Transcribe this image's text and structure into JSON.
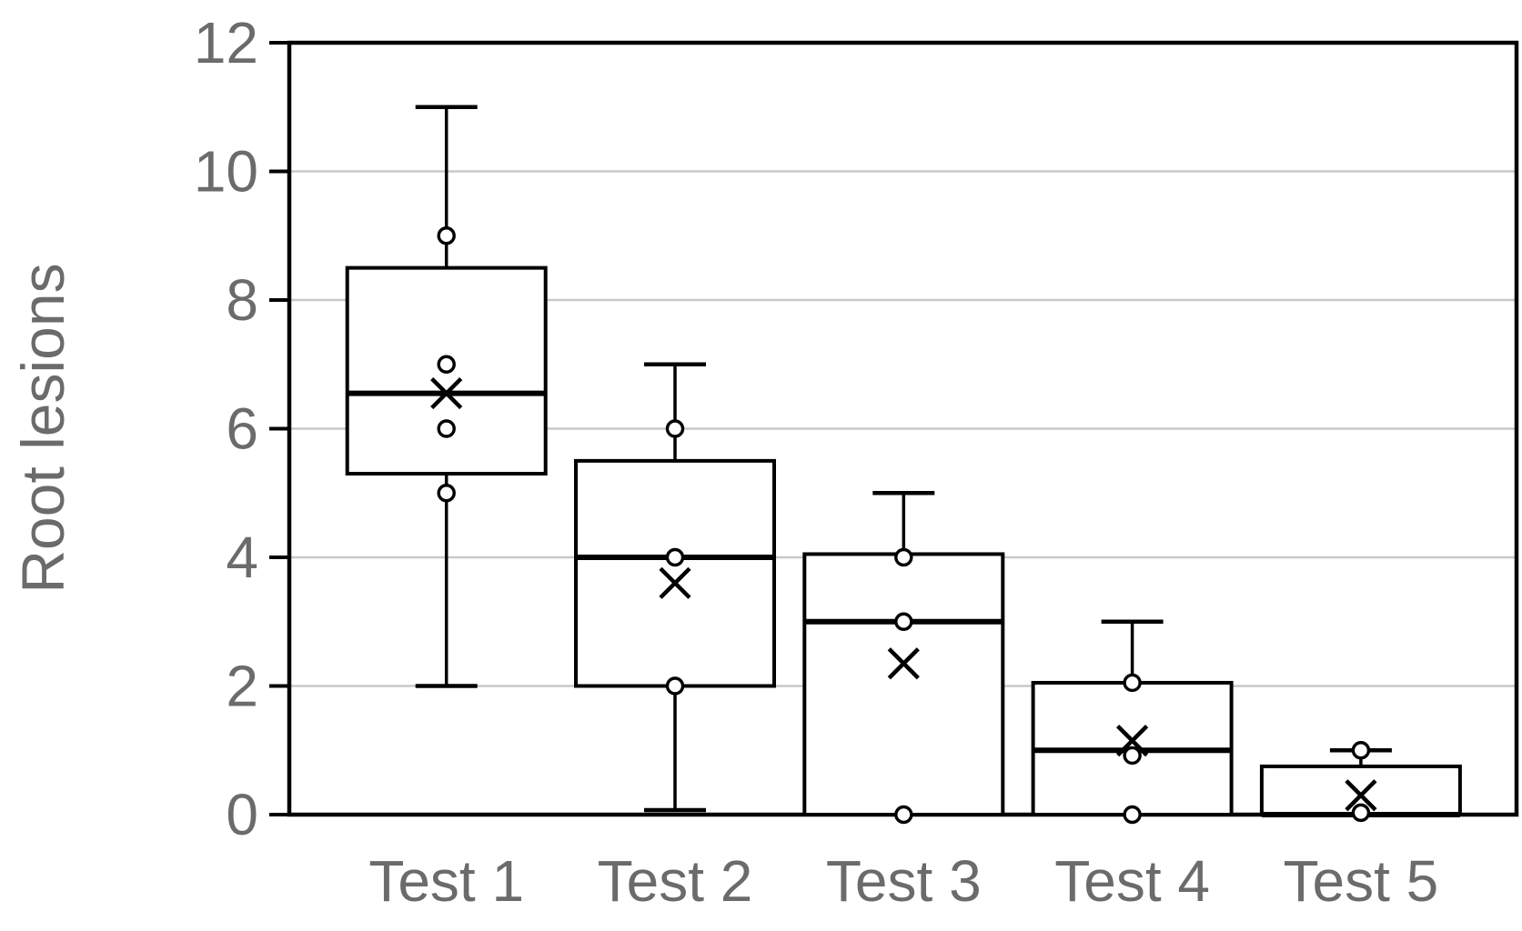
{
  "chart_data": {
    "type": "box",
    "title": "",
    "xlabel": "",
    "ylabel": "Root lesions",
    "ylim": [
      0,
      12
    ],
    "yticks": [
      0,
      2,
      4,
      6,
      8,
      10,
      12
    ],
    "gridlines": [
      2,
      4,
      6,
      8,
      10
    ],
    "legend": "none",
    "grid": "horizontal",
    "categories": [
      "Test 1",
      "Test 2",
      "Test 3",
      "Test 4",
      "Test 5"
    ],
    "series": [
      {
        "category": "Test 1",
        "whisker_low": 2,
        "q1": 5.3,
        "median": 6.55,
        "q3": 8.5,
        "whisker_high": 11,
        "mean": 6.55,
        "points": [
          9,
          7,
          6,
          5
        ]
      },
      {
        "category": "Test 2",
        "whisker_low": 0.07,
        "q1": 2,
        "median": 4,
        "q3": 5.5,
        "whisker_high": 7,
        "mean": 3.6,
        "points": [
          6,
          4,
          2
        ]
      },
      {
        "category": "Test 3",
        "whisker_low": null,
        "q1": 0,
        "median": 3,
        "q3": 4.05,
        "whisker_high": 5,
        "mean": 2.35,
        "points": [
          4,
          3,
          0
        ]
      },
      {
        "category": "Test 4",
        "whisker_low": null,
        "q1": 0,
        "median": 1,
        "q3": 2.05,
        "whisker_high": 3,
        "mean": 1.15,
        "points": [
          2.05,
          0.92,
          0
        ]
      },
      {
        "category": "Test 5",
        "whisker_low": null,
        "q1": 0,
        "median": 0,
        "q3": 0.75,
        "whisker_high": 1,
        "mean": 0.3,
        "points": [
          1,
          0.03
        ]
      }
    ],
    "colors": {
      "axis": "#000000",
      "box_stroke": "#000000",
      "box_fill": "#ffffff",
      "median": "#000000",
      "whisker": "#000000",
      "gridline": "#c8c8c8",
      "label_text": "#6b6b6b",
      "point_stroke": "#000000",
      "point_fill": "#ffffff",
      "mean_marker": "#000000"
    },
    "marker_styles": {
      "data_point": "open-circle",
      "mean": "x-cross"
    }
  }
}
